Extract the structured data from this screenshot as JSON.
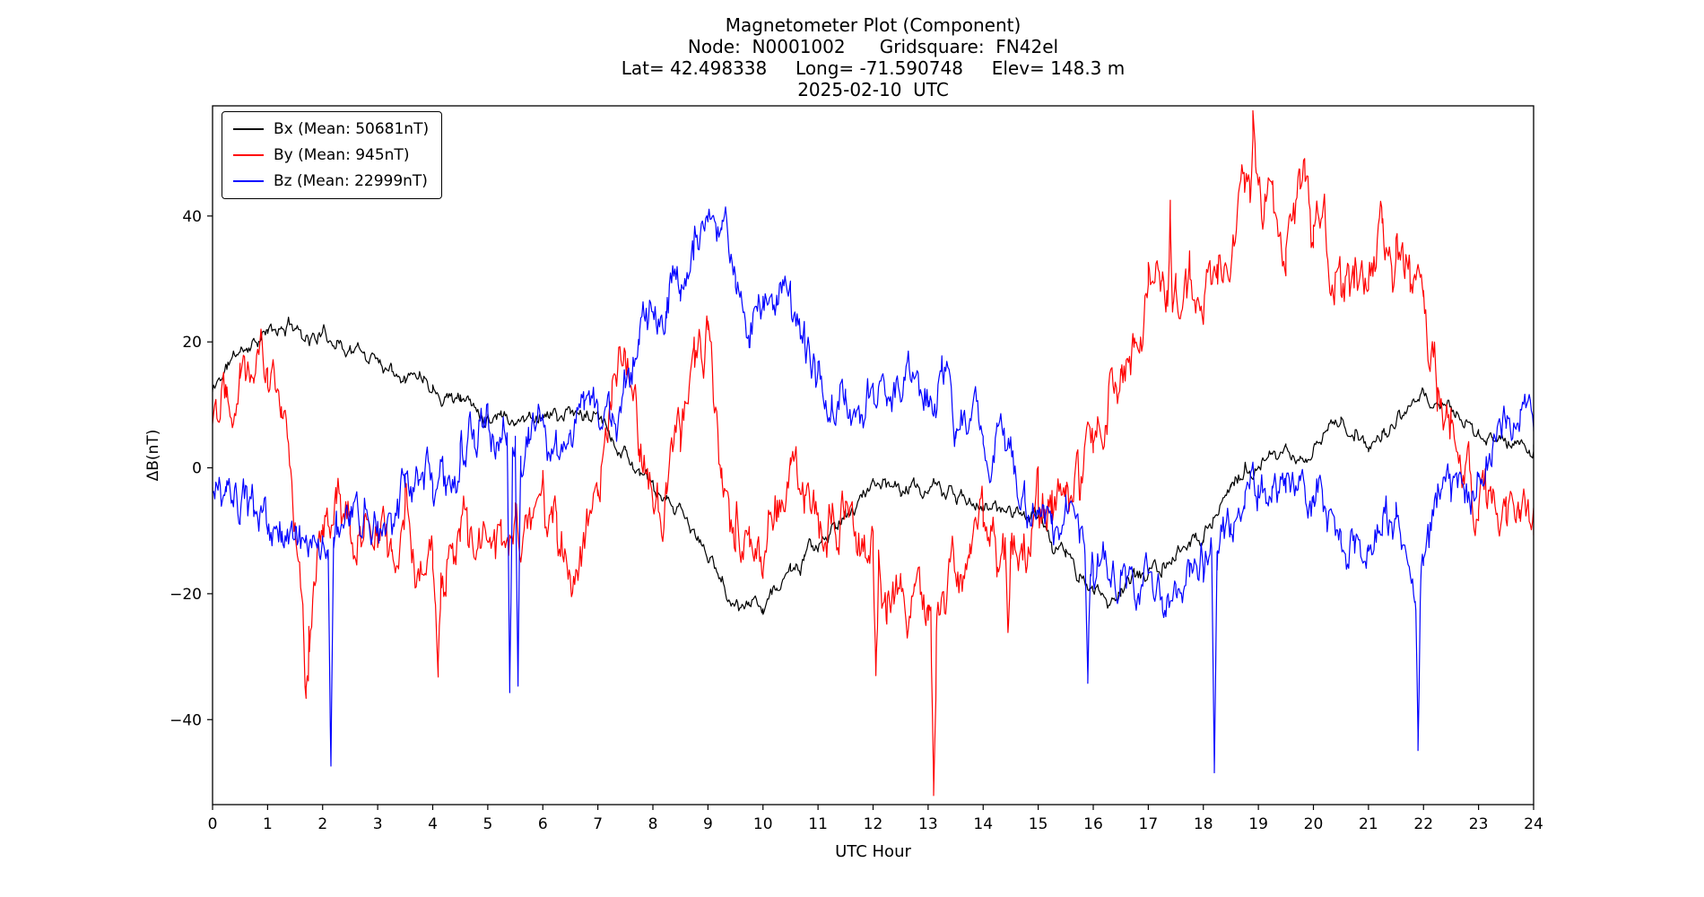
{
  "header": {
    "lines": [
      "Magnetometer Plot (Component)",
      "Node:  N0001002      Gridsquare:  FN42el",
      "Lat= 42.498338     Long= -71.590748     Elev= 148.3 m",
      "2025-02-10  UTC"
    ]
  },
  "chart_data": {
    "type": "line",
    "title": "Magnetometer Plot (Component)",
    "xlabel": "UTC Hour",
    "ylabel": "ΔB(nT)",
    "xlim": [
      0,
      24
    ],
    "ylim": [
      -53.5,
      57.5
    ],
    "xticks": [
      0,
      1,
      2,
      3,
      4,
      5,
      6,
      7,
      8,
      9,
      10,
      11,
      12,
      13,
      14,
      15,
      16,
      17,
      18,
      19,
      20,
      21,
      22,
      23,
      24
    ],
    "yticks": [
      -40,
      -20,
      0,
      20,
      40
    ],
    "grid": false,
    "legend_position": "upper left",
    "x_step": 0.25,
    "series": [
      {
        "name": "Bx (Mean: 50681nT)",
        "color": "#000000",
        "noise": 1.3,
        "seed": 11,
        "values": [
          12,
          16,
          19,
          20,
          21,
          22,
          23,
          21,
          21,
          20,
          19,
          18,
          17,
          16,
          16,
          15,
          13,
          12,
          11,
          10,
          9,
          9,
          8,
          8,
          9,
          8,
          8,
          8,
          8,
          6,
          3,
          0,
          -3,
          -6,
          -8,
          -11,
          -14,
          -18,
          -21,
          -23,
          -22,
          -19,
          -16,
          -14,
          -12,
          -10,
          -8,
          -5,
          -2,
          -2,
          -3,
          -3,
          -4,
          -4,
          -5,
          -6,
          -7,
          -7,
          -6,
          -7,
          -8,
          -12,
          -14,
          -17,
          -20,
          -21,
          -19,
          -17,
          -16,
          -16,
          -15,
          -13,
          -10,
          -6,
          -3,
          -1,
          0,
          1,
          2,
          2,
          3,
          6,
          8,
          6,
          4,
          6,
          7,
          9,
          10,
          11,
          9,
          7,
          5,
          4,
          4,
          3,
          3
        ],
        "spikes": []
      },
      {
        "name": "By (Mean: 945nT)",
        "color": "#ff0000",
        "noise": 5.0,
        "seed": 22,
        "values": [
          10,
          18,
          21,
          20,
          17,
          8,
          -5,
          -25,
          -15,
          -5,
          -10,
          -11,
          -12,
          -13,
          -14,
          -16,
          -18,
          -17,
          -15,
          -13,
          -12,
          -11,
          -11,
          -10,
          -10,
          -11,
          -12,
          -10,
          -8,
          5,
          12,
          2,
          -5,
          -2,
          2,
          15,
          20,
          5,
          -4,
          -8,
          -10,
          -6,
          -2,
          -8,
          -14,
          -6,
          -8,
          -10,
          -16,
          -20,
          -15,
          -18,
          -24,
          -20,
          -15,
          -13,
          -12,
          -14,
          -15,
          -13,
          -12,
          -8,
          -5,
          -2,
          0,
          5,
          10,
          18,
          25,
          30,
          28,
          26,
          30,
          33,
          36,
          42,
          46,
          40,
          35,
          42,
          44,
          38,
          33,
          30,
          26,
          33,
          30,
          34,
          28,
          18,
          10,
          2,
          -3,
          -4,
          -5,
          -7,
          -10
        ],
        "spikes": [
          {
            "x": 1.7,
            "v": -31
          },
          {
            "x": 4.1,
            "v": -30
          },
          {
            "x": 12.05,
            "v": -30
          },
          {
            "x": 13.1,
            "v": -48
          },
          {
            "x": 14.45,
            "v": -33
          },
          {
            "x": 17.4,
            "v": 42
          },
          {
            "x": 18.9,
            "v": 53
          },
          {
            "x": 19.9,
            "v": 50
          }
        ]
      },
      {
        "name": "Bz (Mean: 22999nT)",
        "color": "#0000ff",
        "noise": 4.0,
        "seed": 33,
        "values": [
          -4,
          -7,
          -9,
          -11,
          -12,
          -11,
          -10,
          -11,
          -12,
          -11,
          -10,
          -9,
          -8,
          -8,
          -7,
          -6,
          -4,
          -2,
          0,
          3,
          5,
          6,
          5,
          5,
          5,
          6,
          7,
          8,
          8,
          10,
          15,
          20,
          24,
          28,
          31,
          34,
          38,
          40,
          32,
          22,
          24,
          27,
          26,
          20,
          15,
          11,
          12,
          11,
          10,
          12,
          14,
          13,
          12,
          14,
          11,
          9,
          8,
          5,
          1,
          -2,
          -5,
          -9,
          -7,
          -9,
          -11,
          -13,
          -15,
          -18,
          -20,
          -22,
          -20,
          -19,
          -18,
          -12,
          -6,
          -2,
          0,
          -2,
          -4,
          -6,
          -8,
          -9,
          -10,
          -12,
          -14,
          -13,
          -12,
          -18,
          -14,
          -7,
          -2,
          1,
          3,
          5,
          8,
          10,
          12
        ],
        "spikes": [
          {
            "x": 2.15,
            "v": -44
          },
          {
            "x": 5.4,
            "v": -32
          },
          {
            "x": 5.55,
            "v": -30
          },
          {
            "x": 15.9,
            "v": -33
          },
          {
            "x": 18.2,
            "v": -45
          },
          {
            "x": 21.9,
            "v": -43
          }
        ]
      }
    ]
  }
}
